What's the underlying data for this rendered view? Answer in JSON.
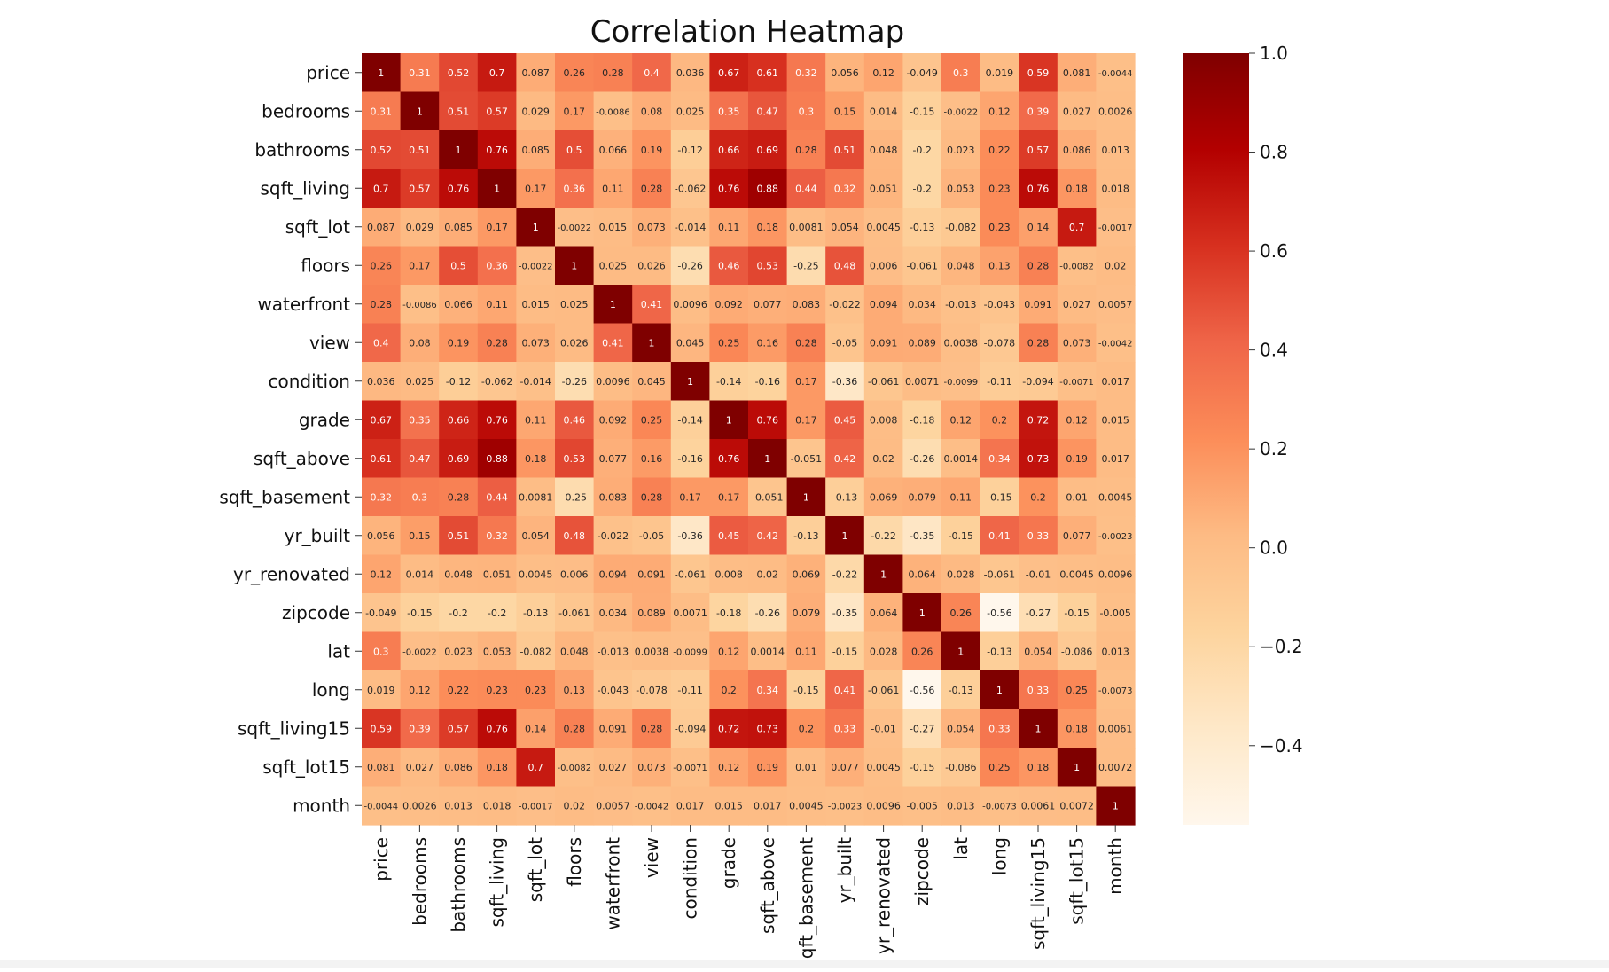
{
  "chart_data": {
    "type": "heatmap",
    "title": "Correlation Heatmap",
    "xlabel": "",
    "ylabel": "",
    "colormap": "OrRd",
    "vmin": -0.56,
    "vmax": 1.0,
    "colorbar_ticks": [
      1.0,
      0.8,
      0.6,
      0.4,
      0.2,
      0.0,
      -0.2,
      -0.4
    ],
    "colorbar_tick_labels": [
      "1.0",
      "0.8",
      "0.6",
      "0.4",
      "0.2",
      "0.0",
      "−0.2",
      "−0.4"
    ],
    "legend": "right",
    "variables": [
      "price",
      "bedrooms",
      "bathrooms",
      "sqft_living",
      "sqft_lot",
      "floors",
      "waterfront",
      "view",
      "condition",
      "grade",
      "sqft_above",
      "sqft_basement",
      "yr_built",
      "yr_renovated",
      "zipcode",
      "lat",
      "long",
      "sqft_living15",
      "sqft_lot15",
      "month"
    ],
    "annotations": [
      [
        "1",
        "0.31",
        "0.52",
        "0.7",
        "0.087",
        "0.26",
        "0.28",
        "0.4",
        "0.036",
        "0.67",
        "0.61",
        "0.32",
        "0.056",
        "0.12",
        "-0.049",
        "0.3",
        "0.019",
        "0.59",
        "0.081",
        "-0.0044"
      ],
      [
        "0.31",
        "1",
        "0.51",
        "0.57",
        "0.029",
        "0.17",
        "-0.0086",
        "0.08",
        "0.025",
        "0.35",
        "0.47",
        "0.3",
        "0.15",
        "0.014",
        "-0.15",
        "-0.0022",
        "0.12",
        "0.39",
        "0.027",
        "0.0026"
      ],
      [
        "0.52",
        "0.51",
        "1",
        "0.76",
        "0.085",
        "0.5",
        "0.066",
        "0.19",
        "-0.12",
        "0.66",
        "0.69",
        "0.28",
        "0.51",
        "0.048",
        "-0.2",
        "0.023",
        "0.22",
        "0.57",
        "0.086",
        "0.013"
      ],
      [
        "0.7",
        "0.57",
        "0.76",
        "1",
        "0.17",
        "0.36",
        "0.11",
        "0.28",
        "-0.062",
        "0.76",
        "0.88",
        "0.44",
        "0.32",
        "0.051",
        "-0.2",
        "0.053",
        "0.23",
        "0.76",
        "0.18",
        "0.018"
      ],
      [
        "0.087",
        "0.029",
        "0.085",
        "0.17",
        "1",
        "-0.0022",
        "0.015",
        "0.073",
        "-0.014",
        "0.11",
        "0.18",
        "0.0081",
        "0.054",
        "0.0045",
        "-0.13",
        "-0.082",
        "0.23",
        "0.14",
        "0.7",
        "-0.0017"
      ],
      [
        "0.26",
        "0.17",
        "0.5",
        "0.36",
        "-0.0022",
        "1",
        "0.025",
        "0.026",
        "-0.26",
        "0.46",
        "0.53",
        "-0.25",
        "0.48",
        "0.006",
        "-0.061",
        "0.048",
        "0.13",
        "0.28",
        "-0.0082",
        "0.02"
      ],
      [
        "0.28",
        "-0.0086",
        "0.066",
        "0.11",
        "0.015",
        "0.025",
        "1",
        "0.41",
        "0.0096",
        "0.092",
        "0.077",
        "0.083",
        "-0.022",
        "0.094",
        "0.034",
        "-0.013",
        "-0.043",
        "0.091",
        "0.027",
        "0.0057"
      ],
      [
        "0.4",
        "0.08",
        "0.19",
        "0.28",
        "0.073",
        "0.026",
        "0.41",
        "1",
        "0.045",
        "0.25",
        "0.16",
        "0.28",
        "-0.05",
        "0.091",
        "0.089",
        "0.0038",
        "-0.078",
        "0.28",
        "0.073",
        "-0.0042"
      ],
      [
        "0.036",
        "0.025",
        "-0.12",
        "-0.062",
        "-0.014",
        "-0.26",
        "0.0096",
        "0.045",
        "1",
        "-0.14",
        "-0.16",
        "0.17",
        "-0.36",
        "-0.061",
        "0.0071",
        "-0.0099",
        "-0.11",
        "-0.094",
        "-0.0071",
        "0.017"
      ],
      [
        "0.67",
        "0.35",
        "0.66",
        "0.76",
        "0.11",
        "0.46",
        "0.092",
        "0.25",
        "-0.14",
        "1",
        "0.76",
        "0.17",
        "0.45",
        "0.008",
        "-0.18",
        "0.12",
        "0.2",
        "0.72",
        "0.12",
        "0.015"
      ],
      [
        "0.61",
        "0.47",
        "0.69",
        "0.88",
        "0.18",
        "0.53",
        "0.077",
        "0.16",
        "-0.16",
        "0.76",
        "1",
        "-0.051",
        "0.42",
        "0.02",
        "-0.26",
        "0.0014",
        "0.34",
        "0.73",
        "0.19",
        "0.017"
      ],
      [
        "0.32",
        "0.3",
        "0.28",
        "0.44",
        "0.0081",
        "-0.25",
        "0.083",
        "0.28",
        "0.17",
        "0.17",
        "-0.051",
        "1",
        "-0.13",
        "0.069",
        "0.079",
        "0.11",
        "-0.15",
        "0.2",
        "0.01",
        "0.0045"
      ],
      [
        "0.056",
        "0.15",
        "0.51",
        "0.32",
        "0.054",
        "0.48",
        "-0.022",
        "-0.05",
        "-0.36",
        "0.45",
        "0.42",
        "-0.13",
        "1",
        "-0.22",
        "-0.35",
        "-0.15",
        "0.41",
        "0.33",
        "0.077",
        "-0.0023"
      ],
      [
        "0.12",
        "0.014",
        "0.048",
        "0.051",
        "0.0045",
        "0.006",
        "0.094",
        "0.091",
        "-0.061",
        "0.008",
        "0.02",
        "0.069",
        "-0.22",
        "1",
        "0.064",
        "0.028",
        "-0.061",
        "-0.01",
        "0.0045",
        "0.0096"
      ],
      [
        "-0.049",
        "-0.15",
        "-0.2",
        "-0.2",
        "-0.13",
        "-0.061",
        "0.034",
        "0.089",
        "0.0071",
        "-0.18",
        "-0.26",
        "0.079",
        "-0.35",
        "0.064",
        "1",
        "0.26",
        "-0.56",
        "-0.27",
        "-0.15",
        "-0.005"
      ],
      [
        "0.3",
        "-0.0022",
        "0.023",
        "0.053",
        "-0.082",
        "0.048",
        "-0.013",
        "0.0038",
        "-0.0099",
        "0.12",
        "0.0014",
        "0.11",
        "-0.15",
        "0.028",
        "0.26",
        "1",
        "-0.13",
        "0.054",
        "-0.086",
        "0.013"
      ],
      [
        "0.019",
        "0.12",
        "0.22",
        "0.23",
        "0.23",
        "0.13",
        "-0.043",
        "-0.078",
        "-0.11",
        "0.2",
        "0.34",
        "-0.15",
        "0.41",
        "-0.061",
        "-0.56",
        "-0.13",
        "1",
        "0.33",
        "0.25",
        "-0.0073"
      ],
      [
        "0.59",
        "0.39",
        "0.57",
        "0.76",
        "0.14",
        "0.28",
        "0.091",
        "0.28",
        "-0.094",
        "0.72",
        "0.73",
        "0.2",
        "0.33",
        "-0.01",
        "-0.27",
        "0.054",
        "0.33",
        "1",
        "0.18",
        "0.0061"
      ],
      [
        "0.081",
        "0.027",
        "0.086",
        "0.18",
        "0.7",
        "-0.0082",
        "0.027",
        "0.073",
        "-0.0071",
        "0.12",
        "0.19",
        "0.01",
        "0.077",
        "0.0045",
        "-0.15",
        "-0.086",
        "0.25",
        "0.18",
        "1",
        "0.0072"
      ],
      [
        "-0.0044",
        "0.0026",
        "0.013",
        "0.018",
        "-0.0017",
        "0.02",
        "0.0057",
        "-0.0042",
        "0.017",
        "0.015",
        "0.017",
        "0.0045",
        "-0.0023",
        "0.0096",
        "-0.005",
        "0.013",
        "-0.0073",
        "0.0061",
        "0.0072",
        "1"
      ]
    ]
  }
}
